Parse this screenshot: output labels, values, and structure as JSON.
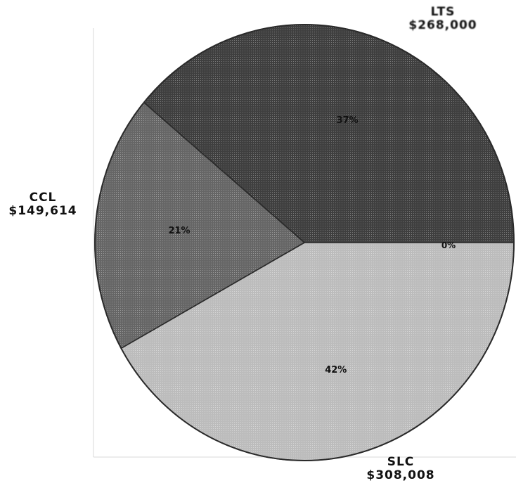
{
  "chart_data": {
    "type": "pie",
    "title": "",
    "slices": [
      {
        "name": "LTS",
        "amount_label": "$268,000",
        "percent_label": "37%",
        "value": 37,
        "color": "#4a4a4a",
        "start_angle": -140,
        "end_angle": 0
      },
      {
        "name": "SLC",
        "amount_label": "$308,008",
        "percent_label": "42%",
        "value": 42,
        "color": "#bdbdbd",
        "start_angle": 0,
        "end_angle": 151
      },
      {
        "name": "CCL",
        "amount_label": "$149,614",
        "percent_label": "21%",
        "value": 21,
        "color": "#6e6e6e",
        "start_angle": 151,
        "end_angle": 220
      }
    ],
    "small_slice_label": "0%"
  }
}
